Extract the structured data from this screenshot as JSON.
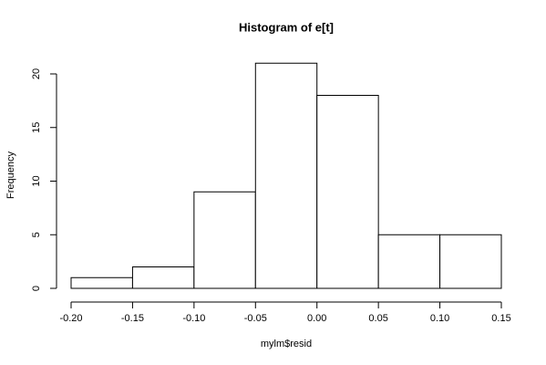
{
  "chart_data": {
    "type": "histogram",
    "title": "Histogram of e[t]",
    "x_label": "mylm$resid",
    "y_label": "Frequency",
    "bins": [
      -0.2,
      -0.15,
      -0.1,
      -0.05,
      0.0,
      0.05,
      0.1,
      0.15
    ],
    "values": [
      1,
      2,
      9,
      21,
      18,
      5,
      5
    ],
    "color": "#ffffff",
    "edge_color": "#000000",
    "xlim": [
      -0.2,
      0.15
    ],
    "xticks": [
      {
        "value": -0.2,
        "label": "-0.20"
      },
      {
        "value": -0.15,
        "label": "-0.15"
      },
      {
        "value": -0.1,
        "label": "-0.10"
      },
      {
        "value": -0.05,
        "label": "-0.05"
      },
      {
        "value": 0.0,
        "label": "0.00"
      },
      {
        "value": 0.05,
        "label": "0.05"
      },
      {
        "value": 0.1,
        "label": "0.10"
      },
      {
        "value": 0.15,
        "label": "0.15"
      }
    ],
    "ylim": [
      0,
      21
    ],
    "yticks": [
      0,
      5,
      10,
      15,
      20
    ],
    "grid": false
  }
}
